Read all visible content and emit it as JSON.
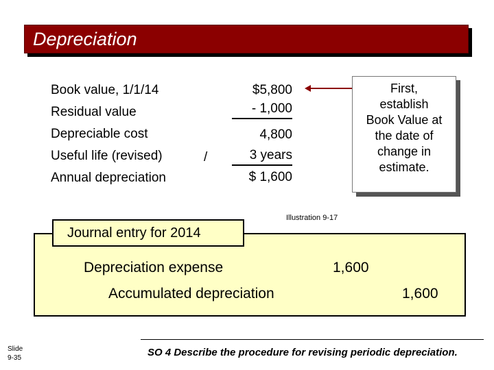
{
  "title": "Depreciation",
  "rows": [
    {
      "label": "Book value, 1/1/14",
      "amount": "$5,800"
    },
    {
      "label": "Residual value",
      "amount": "- 1,000"
    },
    {
      "label": "Depreciable cost",
      "amount": "4,800"
    },
    {
      "label": "Useful life (revised)",
      "operator": "/",
      "amount": "3 years"
    },
    {
      "label": "Annual depreciation",
      "amount": "$ 1,600"
    }
  ],
  "callout": [
    "First,",
    "establish",
    "Book Value at",
    "the date of",
    "change in",
    "estimate."
  ],
  "illustration": "Illustration 9-17",
  "journal": {
    "heading": "Journal entry for 2014",
    "debit_account": "Depreciation expense",
    "debit_amount": "1,600",
    "credit_account": "Accumulated depreciation",
    "credit_amount": "1,600"
  },
  "slide": {
    "label": "Slide",
    "number": "9-35"
  },
  "footer": "SO 4 Describe the procedure for revising periodic depreciation.",
  "colors": {
    "title_bg": "#8b0000",
    "journal_bg": "#ffffc6",
    "arrow": "#8b0000"
  }
}
